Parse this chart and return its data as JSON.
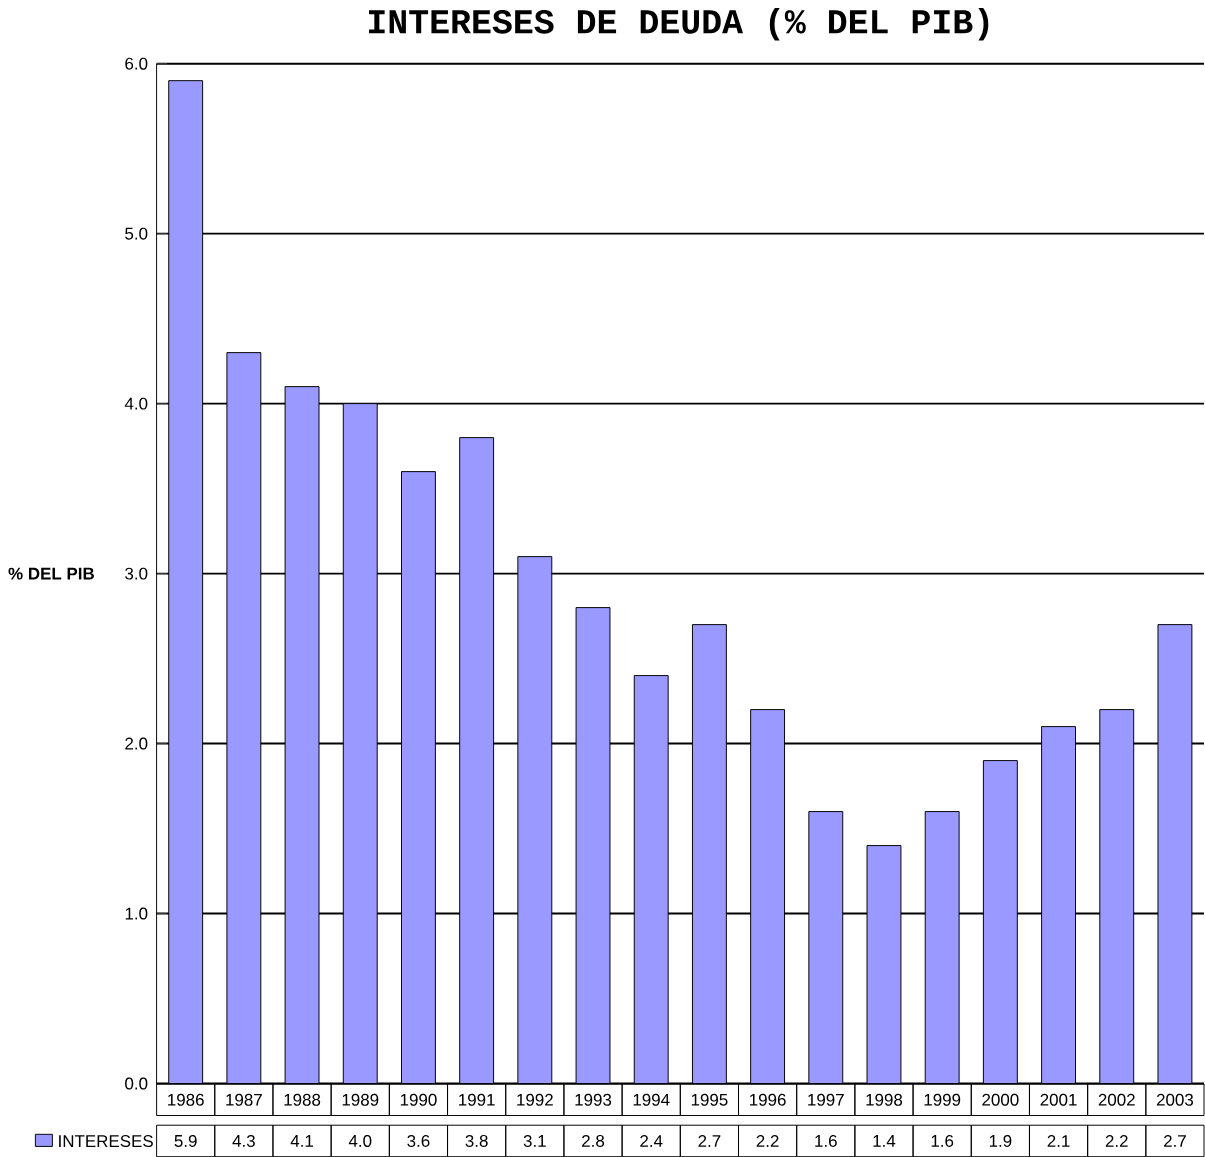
{
  "chart_data": {
    "type": "bar",
    "title": "INTERESES DE DEUDA (% DEL PIB)",
    "ylabel": "% DEL PIB",
    "categories": [
      "1986",
      "1987",
      "1988",
      "1989",
      "1990",
      "1991",
      "1992",
      "1993",
      "1994",
      "1995",
      "1996",
      "1997",
      "1998",
      "1999",
      "2000",
      "2001",
      "2002",
      "2003"
    ],
    "series": [
      {
        "name": "INTERESES",
        "color": "#9999ff",
        "values": [
          5.9,
          4.3,
          4.1,
          4.0,
          3.6,
          3.8,
          3.1,
          2.8,
          2.4,
          2.7,
          2.2,
          1.6,
          1.4,
          1.6,
          1.9,
          2.1,
          2.2,
          2.7
        ],
        "value_labels": [
          "5.9",
          "4.3",
          "4.1",
          "4.0",
          "3.6",
          "3.8",
          "3.1",
          "2.8",
          "2.4",
          "2.7",
          "2.2",
          "1.6",
          "1.4",
          "1.6",
          "1.9",
          "2.1",
          "2.2",
          "2.7"
        ]
      }
    ],
    "ylim": [
      0,
      6
    ],
    "yticks": [
      {
        "value": 0,
        "label": "0.0"
      },
      {
        "value": 1,
        "label": "1.0"
      },
      {
        "value": 2,
        "label": "2.0"
      },
      {
        "value": 3,
        "label": "3.0"
      },
      {
        "value": 4,
        "label": "4.0"
      },
      {
        "value": 5,
        "label": "5.0"
      },
      {
        "value": 6,
        "label": "6.0"
      }
    ],
    "grid": "y",
    "legend": "bottom left"
  }
}
